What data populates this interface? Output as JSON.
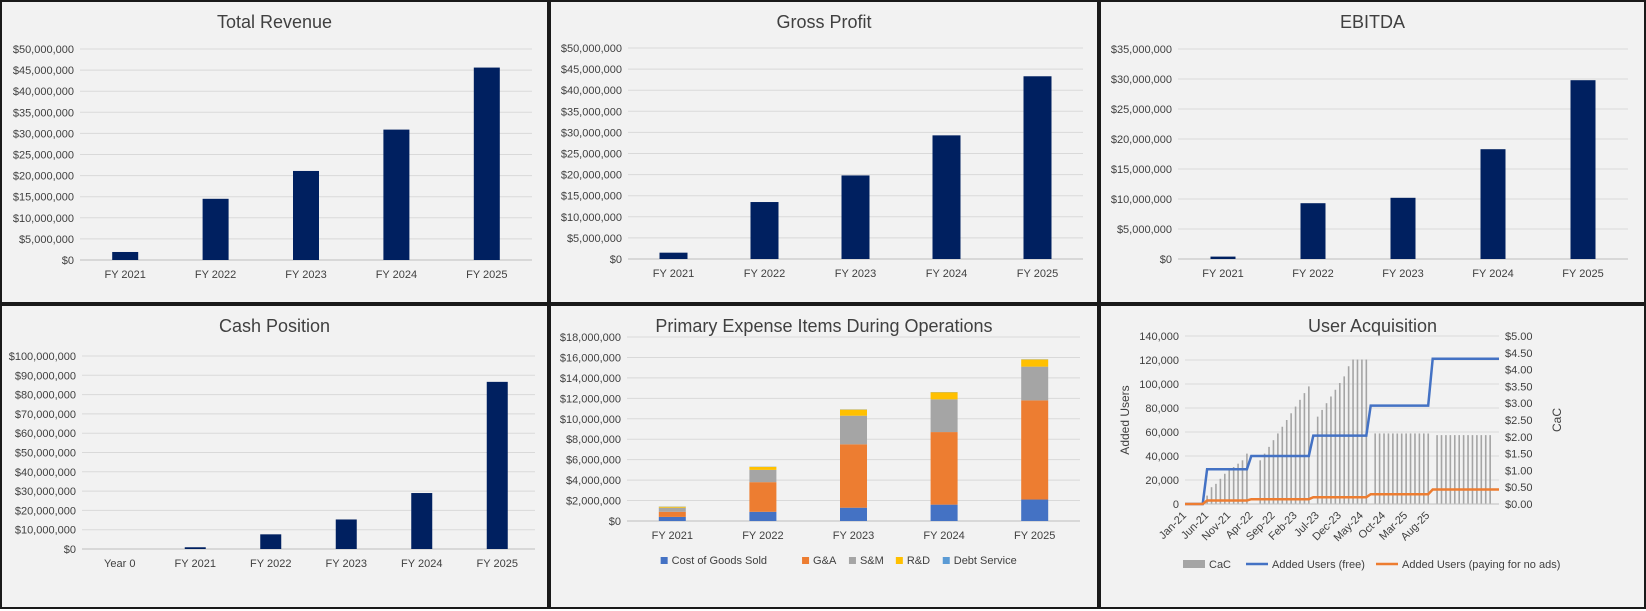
{
  "chart_data": [
    {
      "id": "total-revenue",
      "type": "bar",
      "title": "Total Revenue",
      "categories": [
        "FY 2021",
        "FY 2022",
        "FY 2023",
        "FY 2024",
        "FY 2025"
      ],
      "values": [
        1900000,
        14500000,
        21100000,
        30900000,
        45600000
      ],
      "ylim": [
        0,
        50000000
      ],
      "yticks": [
        "$0",
        "$5,000,000",
        "$10,000,000",
        "$15,000,000",
        "$20,000,000",
        "$25,000,000",
        "$30,000,000",
        "$35,000,000",
        "$40,000,000",
        "$45,000,000",
        "$50,000,000"
      ],
      "color": "#002060",
      "grid": true
    },
    {
      "id": "gross-profit",
      "type": "bar",
      "title": "Gross Profit",
      "categories": [
        "FY 2021",
        "FY 2022",
        "FY 2023",
        "FY 2024",
        "FY 2025"
      ],
      "values": [
        1500000,
        13500000,
        19800000,
        29300000,
        43300000
      ],
      "ylim": [
        0,
        50000000
      ],
      "yticks": [
        "$0",
        "$5,000,000",
        "$10,000,000",
        "$15,000,000",
        "$20,000,000",
        "$25,000,000",
        "$30,000,000",
        "$35,000,000",
        "$40,000,000",
        "$45,000,000",
        "$50,000,000"
      ],
      "color": "#002060",
      "grid": true
    },
    {
      "id": "ebitda",
      "type": "bar",
      "title": "EBITDA",
      "categories": [
        "FY 2021",
        "FY 2022",
        "FY 2023",
        "FY 2024",
        "FY 2025"
      ],
      "values": [
        400000,
        9300000,
        10200000,
        18300000,
        29800000
      ],
      "ylim": [
        0,
        35000000
      ],
      "yticks": [
        "$0",
        "$5,000,000",
        "$10,000,000",
        "$15,000,000",
        "$20,000,000",
        "$25,000,000",
        "$30,000,000",
        "$35,000,000"
      ],
      "color": "#002060",
      "grid": true
    },
    {
      "id": "cash-position",
      "type": "bar",
      "title": "Cash Position",
      "categories": [
        "Year 0",
        "FY 2021",
        "FY 2022",
        "FY 2023",
        "FY 2024",
        "FY 2025"
      ],
      "values": [
        0,
        900000,
        7600000,
        15300000,
        29000000,
        86600000
      ],
      "ylim": [
        0,
        100000000
      ],
      "yticks": [
        "$0",
        "$10,000,000",
        "$20,000,000",
        "$30,000,000",
        "$40,000,000",
        "$50,000,000",
        "$60,000,000",
        "$70,000,000",
        "$80,000,000",
        "$90,000,000",
        "$100,000,000"
      ],
      "color": "#002060",
      "grid": true
    },
    {
      "id": "expense-items",
      "type": "bar",
      "stacked": true,
      "title": "Primary Expense Items During Operations",
      "categories": [
        "FY 2021",
        "FY 2022",
        "FY 2023",
        "FY 2024",
        "FY 2025"
      ],
      "ylim": [
        0,
        18000000
      ],
      "yticks": [
        "$0",
        "$2,000,000",
        "$4,000,000",
        "$6,000,000",
        "$8,000,000",
        "$10,000,000",
        "$12,000,000",
        "$14,000,000",
        "$16,000,000",
        "$18,000,000"
      ],
      "legend_position": "bottom",
      "grid": true,
      "series": [
        {
          "name": "Cost of Goods Sold",
          "color": "#4472c4",
          "values": [
            400000,
            900000,
            1300000,
            1600000,
            2100000
          ]
        },
        {
          "name": "G&A",
          "color": "#ed7d31",
          "values": [
            500000,
            2900000,
            6200000,
            7100000,
            9700000
          ]
        },
        {
          "name": "S&M",
          "color": "#a5a5a5",
          "values": [
            400000,
            1200000,
            2800000,
            3200000,
            3300000
          ]
        },
        {
          "name": "R&D",
          "color": "#ffc000",
          "values": [
            100000,
            300000,
            600000,
            700000,
            700000
          ]
        },
        {
          "name": "Debt Service",
          "color": "#5b9bd5",
          "values": [
            20000,
            20000,
            20000,
            20000,
            20000
          ]
        }
      ]
    },
    {
      "id": "user-acquisition",
      "type": "line",
      "title": "User Acquisition",
      "ylabel": "Added Users",
      "y2label": "CaC",
      "ylim": [
        0,
        140000
      ],
      "y2lim": [
        0,
        5
      ],
      "yticks": [
        "0",
        "20,000",
        "40,000",
        "60,000",
        "80,000",
        "100,000",
        "120,000",
        "140,000"
      ],
      "y2ticks": [
        "$0.00",
        "$0.50",
        "$1.00",
        "$1.50",
        "$2.00",
        "$2.50",
        "$3.00",
        "$3.50",
        "$4.00",
        "$4.50",
        "$5.00"
      ],
      "xticks": [
        "Jan-21",
        "Jun-21",
        "Nov-21",
        "Apr-22",
        "Sep-22",
        "Feb-23",
        "Jul-23",
        "Dec-23",
        "May-24",
        "Oct-24",
        "Mar-25",
        "Aug-25"
      ],
      "x_start": "Jan-21",
      "legend_position": "bottom",
      "grid": true,
      "series": [
        {
          "name": "CaC",
          "kind": "column",
          "axis": "secondary",
          "color": "#a5a5a5",
          "values": [
            0,
            0,
            0,
            0,
            0,
            0.25,
            0.5,
            0.6,
            0.75,
            0.9,
            1.0,
            1.1,
            1.2,
            1.3,
            1.5,
            0,
            0,
            1.3,
            1.5,
            1.7,
            1.9,
            2.1,
            2.3,
            2.5,
            2.7,
            2.9,
            3.1,
            3.3,
            3.5,
            0,
            2.6,
            2.8,
            3.0,
            3.2,
            3.4,
            3.6,
            3.8,
            4.1,
            4.3,
            4.3,
            4.3,
            4.3,
            0,
            2.1,
            2.1,
            2.1,
            2.1,
            2.1,
            2.1,
            2.1,
            2.1,
            2.1,
            2.1,
            2.1,
            2.1,
            2.1,
            0,
            2.05,
            2.05,
            2.05,
            2.05,
            2.05,
            2.05,
            2.05,
            2.05,
            2.05,
            2.05,
            2.05,
            2.05,
            2.05,
            0,
            0
          ]
        },
        {
          "name": "Added Users (free)",
          "kind": "line",
          "axis": "primary",
          "color": "#4472c4",
          "values": [
            0,
            0,
            0,
            0,
            0,
            29000,
            29000,
            29000,
            29000,
            29000,
            29000,
            29000,
            29000,
            29000,
            29000,
            40000,
            40000,
            40000,
            40000,
            40000,
            40000,
            40000,
            40000,
            40000,
            40000,
            40000,
            40000,
            40000,
            40000,
            57000,
            57000,
            57000,
            57000,
            57000,
            57000,
            57000,
            57000,
            57000,
            57000,
            57000,
            57000,
            57000,
            82000,
            82000,
            82000,
            82000,
            82000,
            82000,
            82000,
            82000,
            82000,
            82000,
            82000,
            82000,
            82000,
            82000,
            121000,
            121000,
            121000,
            121000,
            121000,
            121000,
            121000,
            121000,
            121000,
            121000,
            121000,
            121000,
            121000,
            121000,
            121000,
            121000
          ]
        },
        {
          "name": "Added Users (paying for no ads)",
          "kind": "line",
          "axis": "primary",
          "color": "#ed7d31",
          "values": [
            0,
            0,
            0,
            0,
            0,
            2900,
            2900,
            2900,
            2900,
            2900,
            2900,
            2900,
            2900,
            2900,
            2900,
            4000,
            4000,
            4000,
            4000,
            4000,
            4000,
            4000,
            4000,
            4000,
            4000,
            4000,
            4000,
            4000,
            4000,
            5700,
            5700,
            5700,
            5700,
            5700,
            5700,
            5700,
            5700,
            5700,
            5700,
            5700,
            5700,
            5700,
            8200,
            8200,
            8200,
            8200,
            8200,
            8200,
            8200,
            8200,
            8200,
            8200,
            8200,
            8200,
            8200,
            8200,
            12100,
            12100,
            12100,
            12100,
            12100,
            12100,
            12100,
            12100,
            12100,
            12100,
            12100,
            12100,
            12100,
            12100,
            12100,
            12100
          ]
        }
      ]
    }
  ]
}
